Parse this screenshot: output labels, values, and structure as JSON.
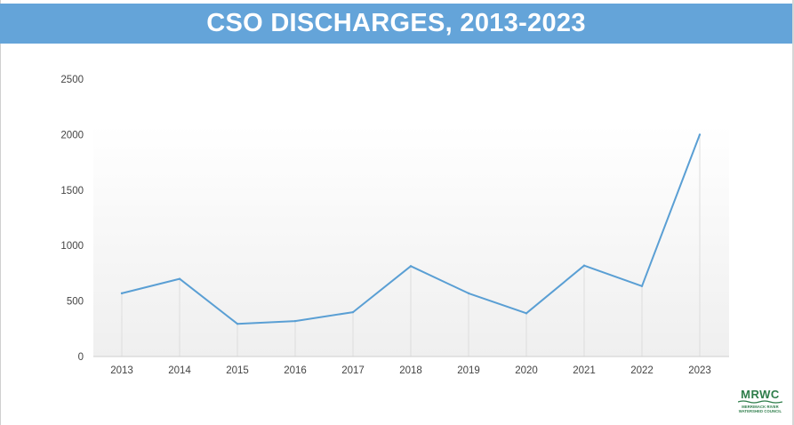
{
  "header": {
    "title": "CSO DISCHARGES, 2013-2023"
  },
  "colors": {
    "title_bar": "#64a4d9",
    "line": "#5a9fd4",
    "logo": "#2e7d4a"
  },
  "chart_data": {
    "type": "line",
    "title": "CSO DISCHARGES, 2013-2023",
    "xlabel": "",
    "ylabel": "",
    "categories": [
      "2013",
      "2014",
      "2015",
      "2016",
      "2017",
      "2018",
      "2019",
      "2020",
      "2021",
      "2022",
      "2023"
    ],
    "values": [
      570,
      700,
      295,
      320,
      400,
      815,
      570,
      390,
      820,
      635,
      2000
    ],
    "ylim": [
      0,
      2500
    ],
    "yticks": [
      "0",
      "500",
      "1000",
      "1500",
      "2000",
      "2500"
    ],
    "grid": "vertical",
    "legend": "none"
  },
  "logo": {
    "main": "MRWC",
    "sub_line1": "MERRIMACK RIVER",
    "sub_line2": "WATERSHED COUNCIL",
    "icon": "wave-icon"
  }
}
